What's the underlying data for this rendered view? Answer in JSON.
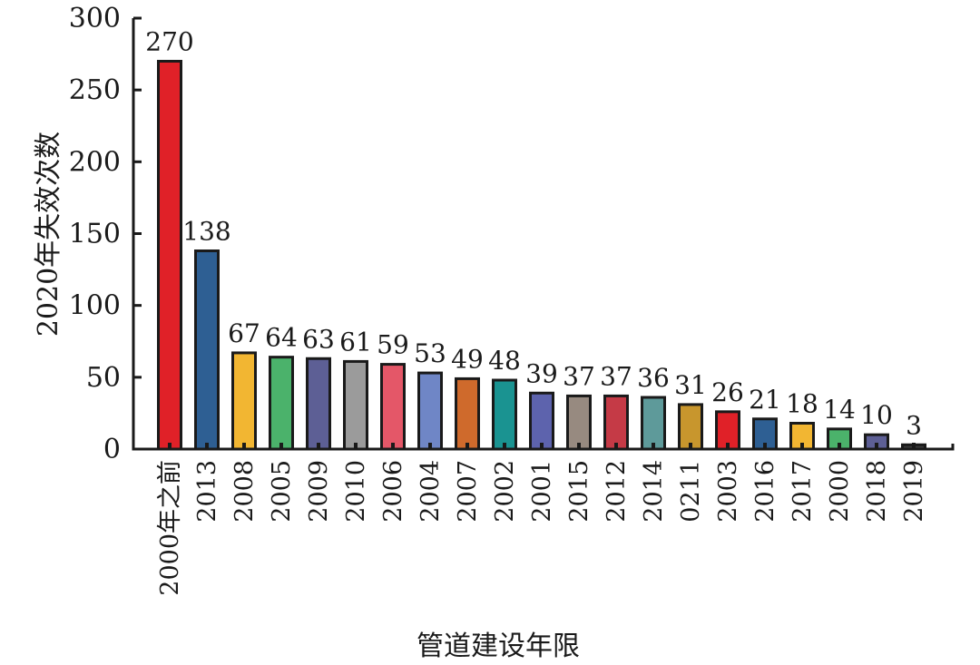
{
  "chart_data": {
    "type": "bar",
    "title": "",
    "xlabel": "管道建设年限",
    "ylabel": "2020年失效次数",
    "ylim": [
      0,
      300
    ],
    "yticks": [
      0,
      50,
      100,
      150,
      200,
      250,
      300
    ],
    "grid": false,
    "legend": "none",
    "categories": [
      "2000年之前",
      "2013",
      "2008",
      "2005",
      "2009",
      "2010",
      "2006",
      "2004",
      "2007",
      "2002",
      "2001",
      "2015",
      "2012",
      "2014",
      "0211",
      "2003",
      "2016",
      "2017",
      "2000",
      "2018",
      "2019"
    ],
    "values": [
      270,
      138,
      67,
      64,
      63,
      61,
      59,
      53,
      49,
      48,
      39,
      37,
      37,
      36,
      31,
      26,
      21,
      18,
      14,
      10,
      3
    ],
    "value_labels": [
      "270",
      "138",
      "67",
      "64",
      "63",
      "61",
      "59",
      "53",
      "49",
      "48",
      "39",
      "37",
      "37",
      "36",
      "31",
      "26",
      "21",
      "18",
      "14",
      "10",
      "3"
    ],
    "colors": [
      "#e02128",
      "#2e5f93",
      "#f2b632",
      "#4bb26b",
      "#5d5f95",
      "#9b9b9b",
      "#e45768",
      "#6f86c6",
      "#cf6a2c",
      "#1a9391",
      "#5d63ad",
      "#978a80",
      "#c53a46",
      "#5e9a9a",
      "#c8962d",
      "#e02128",
      "#2e5f93",
      "#f2b632",
      "#4bb26b",
      "#5d5f95",
      "#3a3a3a"
    ]
  }
}
